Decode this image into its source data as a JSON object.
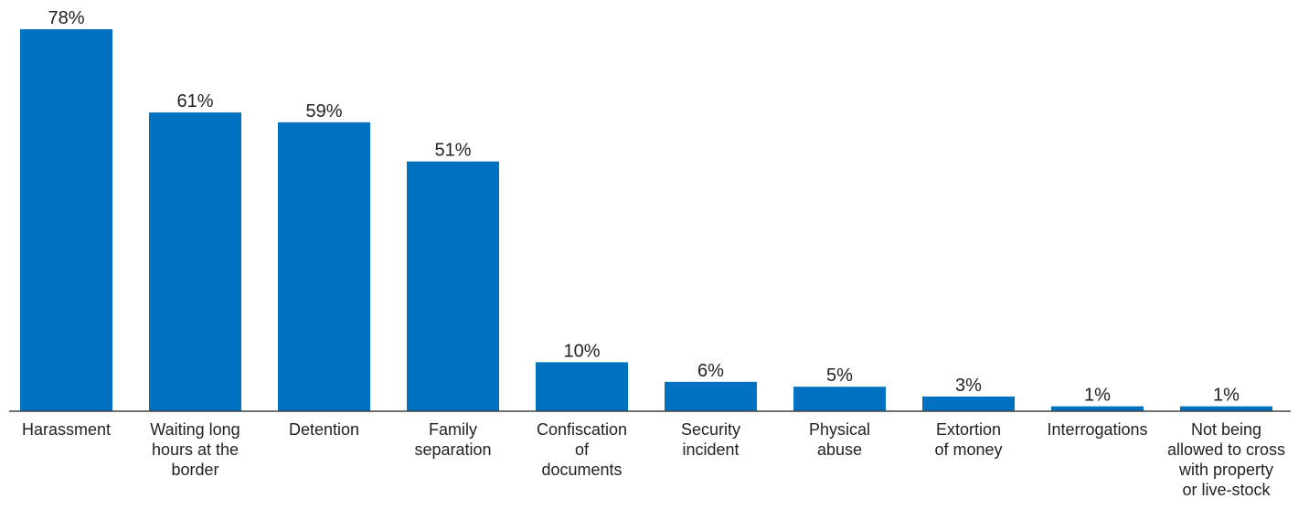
{
  "chart_data": {
    "type": "bar",
    "categories": [
      [
        "Harassment"
      ],
      [
        "Waiting long",
        "hours at the",
        "border"
      ],
      [
        "Detention"
      ],
      [
        "Family",
        "separation"
      ],
      [
        "Confiscation",
        "of",
        "documents"
      ],
      [
        "Security",
        "incident"
      ],
      [
        "Physical",
        "abuse"
      ],
      [
        "Extortion",
        "of money"
      ],
      [
        "Interrogations"
      ],
      [
        "Not being",
        "allowed to cross",
        "with property",
        "or live-stock"
      ]
    ],
    "values": [
      78,
      61,
      59,
      51,
      10,
      6,
      5,
      3,
      1,
      1
    ],
    "value_labels": [
      "78%",
      "61%",
      "59%",
      "51%",
      "10%",
      "6%",
      "5%",
      "3%",
      "1%",
      "1%"
    ],
    "ylim": [
      0,
      100
    ],
    "grid": false,
    "legend": "none",
    "bar_color": "#0070C0",
    "axis_color": "#404040"
  }
}
